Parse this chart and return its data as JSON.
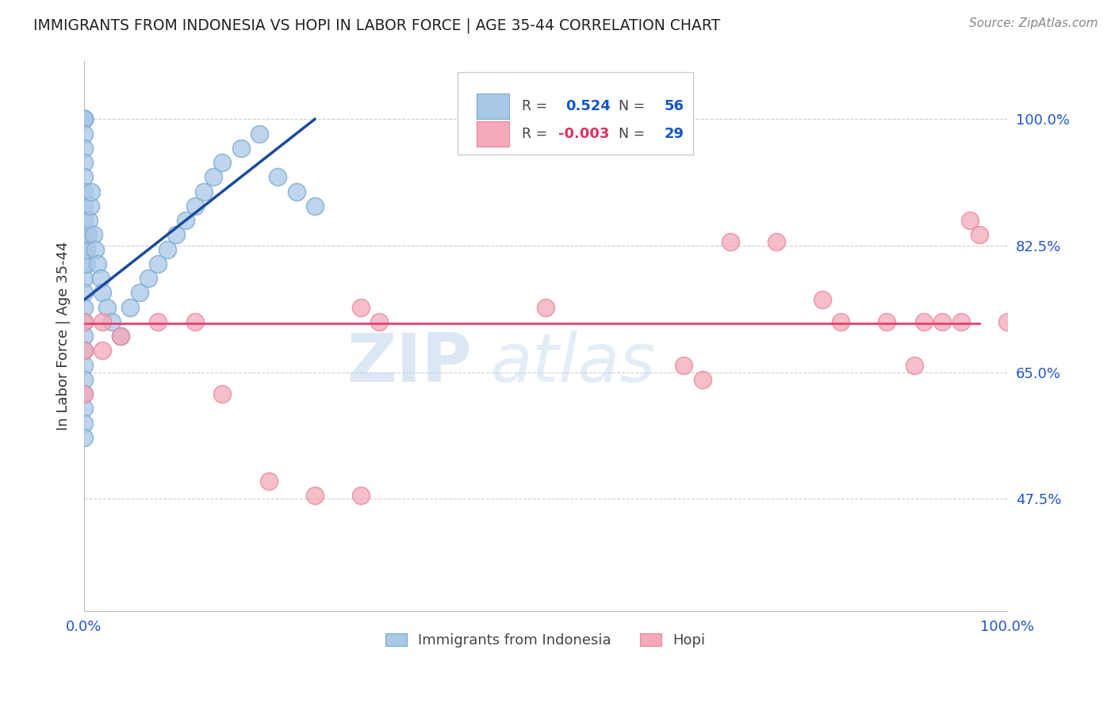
{
  "title": "IMMIGRANTS FROM INDONESIA VS HOPI IN LABOR FORCE | AGE 35-44 CORRELATION CHART",
  "source": "Source: ZipAtlas.com",
  "ylabel": "In Labor Force | Age 35-44",
  "xlim": [
    0.0,
    1.0
  ],
  "ylim": [
    0.32,
    1.08
  ],
  "yticks": [
    0.475,
    0.65,
    0.825,
    1.0
  ],
  "ytick_labels": [
    "47.5%",
    "65.0%",
    "82.5%",
    "100.0%"
  ],
  "xtick_labels": [
    "0.0%",
    "100.0%"
  ],
  "xticks": [
    0.0,
    1.0
  ],
  "blue_R": 0.524,
  "blue_N": 56,
  "pink_R": -0.003,
  "pink_N": 29,
  "blue_color": "#a8c8e8",
  "pink_color": "#f4a8b8",
  "blue_edge_color": "#7aaad0",
  "pink_edge_color": "#e888a0",
  "blue_line_color": "#1a4a9a",
  "pink_line_color": "#e84070",
  "grid_color": "#cccccc",
  "legend_blue_label": "Immigrants from Indonesia",
  "legend_pink_label": "Hopi",
  "watermark_zip": "ZIP",
  "watermark_atlas": "atlas",
  "blue_scatter_x": [
    0.0,
    0.0,
    0.0,
    0.0,
    0.0,
    0.0,
    0.0,
    0.0,
    0.0,
    0.0,
    0.0,
    0.0,
    0.0,
    0.0,
    0.0,
    0.0,
    0.0,
    0.0,
    0.0,
    0.0,
    0.003,
    0.003,
    0.004,
    0.005,
    0.007,
    0.008,
    0.01,
    0.012,
    0.015,
    0.018,
    0.02,
    0.025,
    0.03,
    0.04,
    0.05,
    0.06,
    0.07,
    0.08,
    0.09,
    0.1,
    0.11,
    0.12,
    0.13,
    0.14,
    0.15,
    0.17,
    0.19,
    0.21,
    0.23,
    0.25,
    0.0,
    0.0,
    0.0,
    0.0,
    0.0,
    0.0
  ],
  "blue_scatter_y": [
    1.0,
    1.0,
    1.0,
    1.0,
    0.98,
    0.96,
    0.94,
    0.92,
    0.9,
    0.88,
    0.86,
    0.84,
    0.82,
    0.8,
    0.78,
    0.76,
    0.74,
    0.72,
    0.7,
    0.68,
    0.8,
    0.82,
    0.84,
    0.86,
    0.88,
    0.9,
    0.84,
    0.82,
    0.8,
    0.78,
    0.76,
    0.74,
    0.72,
    0.7,
    0.74,
    0.76,
    0.78,
    0.8,
    0.82,
    0.84,
    0.86,
    0.88,
    0.9,
    0.92,
    0.94,
    0.96,
    0.98,
    0.92,
    0.9,
    0.88,
    0.66,
    0.64,
    0.62,
    0.6,
    0.58,
    0.56
  ],
  "pink_scatter_x": [
    0.0,
    0.0,
    0.0,
    0.02,
    0.02,
    0.04,
    0.3,
    0.32,
    0.5,
    0.65,
    0.67,
    0.7,
    0.75,
    0.8,
    0.82,
    0.87,
    0.9,
    0.91,
    0.93,
    0.95,
    0.96,
    0.97,
    1.0,
    0.08,
    0.12,
    0.15,
    0.2,
    0.25,
    0.3
  ],
  "pink_scatter_y": [
    0.72,
    0.68,
    0.62,
    0.72,
    0.68,
    0.7,
    0.74,
    0.72,
    0.74,
    0.66,
    0.64,
    0.83,
    0.83,
    0.75,
    0.72,
    0.72,
    0.66,
    0.72,
    0.72,
    0.72,
    0.86,
    0.84,
    0.72,
    0.72,
    0.72,
    0.62,
    0.5,
    0.48,
    0.48
  ],
  "blue_trendline_x": [
    0.0,
    0.25
  ],
  "blue_trendline_y": [
    0.75,
    1.0
  ],
  "pink_trendline_y": 0.718
}
